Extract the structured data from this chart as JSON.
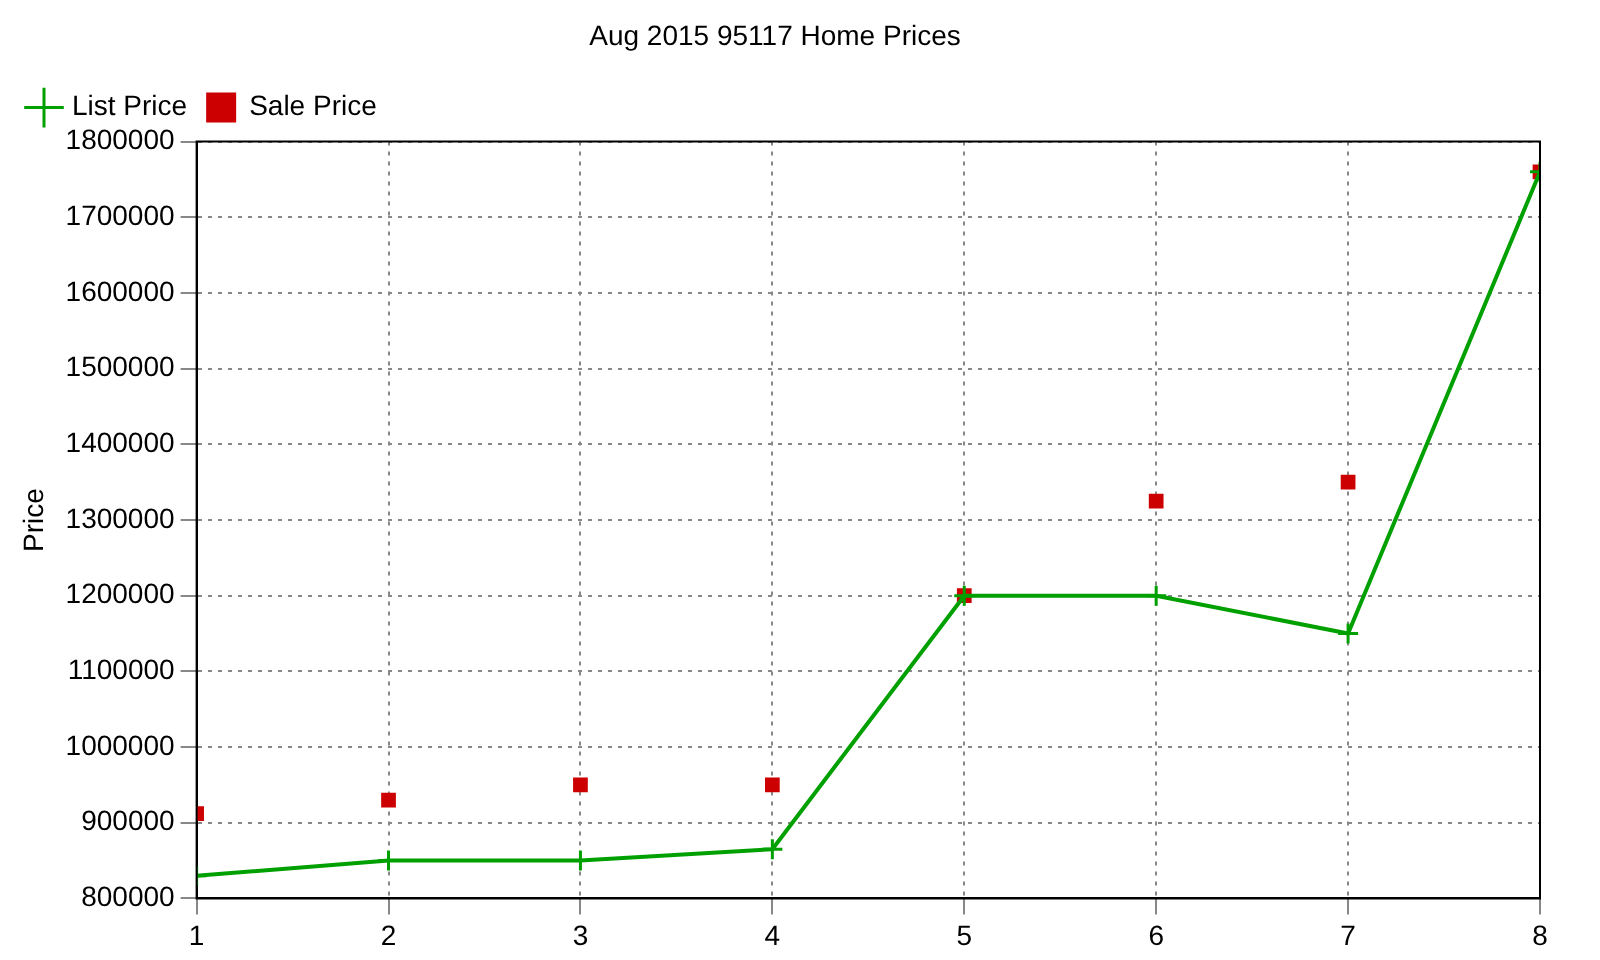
{
  "chart_data": {
    "type": "line",
    "title": "Aug 2015 95117 Home Prices",
    "ylabel": "Price",
    "x": [
      1,
      2,
      3,
      4,
      5,
      6,
      7,
      8
    ],
    "series": [
      {
        "name": "List Price",
        "type": "line",
        "color": "#00a000",
        "marker": "cross",
        "line_style": "solid",
        "values": [
          830000,
          850000,
          850000,
          865000,
          1200000,
          1200000,
          1150000,
          1760000
        ]
      },
      {
        "name": "Sale Price",
        "type": "scatter",
        "color": "#cc0000",
        "marker": "square",
        "values": [
          912000,
          930000,
          950000,
          950000,
          1200000,
          1325000,
          1350000,
          1760000
        ]
      }
    ],
    "xlim": [
      1,
      8
    ],
    "xticks": [
      1,
      2,
      3,
      4,
      5,
      6,
      7,
      8
    ],
    "ylim": [
      800000,
      1800000
    ],
    "yticks": [
      800000,
      900000,
      1000000,
      1100000,
      1200000,
      1300000,
      1400000,
      1500000,
      1600000,
      1700000,
      1800000
    ],
    "grid": true,
    "legend": "top left"
  }
}
